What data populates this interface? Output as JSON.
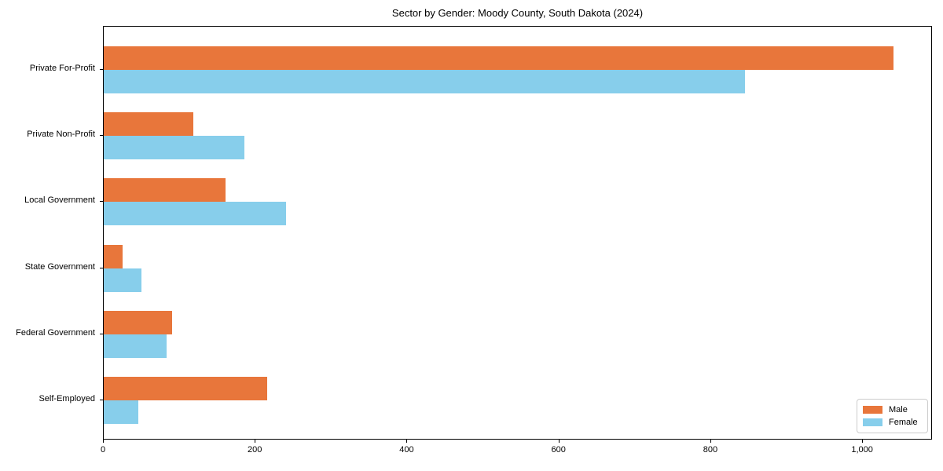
{
  "chart_data": {
    "type": "bar",
    "orientation": "horizontal",
    "title": "Sector by Gender: Moody County, South Dakota (2024)",
    "categories": [
      "Private For-Profit",
      "Private Non-Profit",
      "Local Government",
      "State Government",
      "Federal Government",
      "Self-Employed"
    ],
    "series": [
      {
        "name": "Male",
        "color": "#e8763b",
        "values": [
          1040,
          118,
          160,
          25,
          90,
          215
        ]
      },
      {
        "name": "Female",
        "color": "#87ceeb",
        "values": [
          845,
          185,
          240,
          50,
          83,
          45
        ]
      }
    ],
    "xlabel": "",
    "ylabel": "",
    "xlim": [
      0,
      1092
    ],
    "xticks": [
      0,
      200,
      400,
      600,
      800,
      1000
    ],
    "xtick_labels": [
      "0",
      "200",
      "400",
      "600",
      "800",
      "1,000"
    ],
    "grid": false,
    "legend_position": "lower right",
    "frame_color": "#000000",
    "background_color": "#ffffff"
  }
}
